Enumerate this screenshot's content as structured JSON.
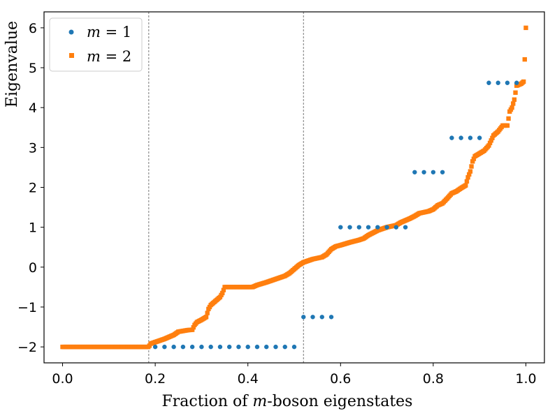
{
  "chart_data": {
    "type": "scatter",
    "title": "",
    "xlabel": "Fraction of m-boson eigenstates",
    "xlabel_prefix": "Fraction of ",
    "xlabel_var": "m",
    "xlabel_suffix": "-boson eigenstates",
    "ylabel": "Eigenvalue",
    "xlim": [
      -0.04,
      1.04
    ],
    "ylim": [
      -2.4,
      6.4
    ],
    "xticks": [
      0.0,
      0.2,
      0.4,
      0.6,
      0.8,
      1.0
    ],
    "xtick_labels": [
      "0.0",
      "0.2",
      "0.4",
      "0.6",
      "0.8",
      "1.0"
    ],
    "yticks": [
      -2,
      -1,
      0,
      1,
      2,
      3,
      4,
      5,
      6
    ],
    "ytick_labels": [
      "−2",
      "−1",
      "0",
      "1",
      "2",
      "3",
      "4",
      "5",
      "6"
    ],
    "grid": false,
    "legend_position": "upper-left",
    "vlines": [
      0.186,
      0.52
    ],
    "vline_color": "#777777",
    "series": [
      {
        "name": "m = 1",
        "label_var": "m",
        "label_rest": " = 1",
        "marker": "circle",
        "color": "#1f77b4",
        "points": [
          [
            0.2,
            -2.0
          ],
          [
            0.22,
            -2.0
          ],
          [
            0.24,
            -2.0
          ],
          [
            0.26,
            -2.0
          ],
          [
            0.28,
            -2.0
          ],
          [
            0.3,
            -2.0
          ],
          [
            0.32,
            -2.0
          ],
          [
            0.34,
            -2.0
          ],
          [
            0.36,
            -2.0
          ],
          [
            0.38,
            -2.0
          ],
          [
            0.4,
            -2.0
          ],
          [
            0.42,
            -2.0
          ],
          [
            0.44,
            -2.0
          ],
          [
            0.46,
            -2.0
          ],
          [
            0.48,
            -2.0
          ],
          [
            0.5,
            -2.0
          ],
          [
            0.52,
            -1.25
          ],
          [
            0.54,
            -1.25
          ],
          [
            0.56,
            -1.25
          ],
          [
            0.58,
            -1.25
          ],
          [
            0.6,
            1.0
          ],
          [
            0.62,
            1.0
          ],
          [
            0.64,
            1.0
          ],
          [
            0.66,
            1.0
          ],
          [
            0.68,
            1.0
          ],
          [
            0.7,
            1.0
          ],
          [
            0.72,
            1.0
          ],
          [
            0.74,
            1.0
          ],
          [
            0.76,
            2.38
          ],
          [
            0.78,
            2.38
          ],
          [
            0.8,
            2.38
          ],
          [
            0.82,
            2.38
          ],
          [
            0.84,
            3.24
          ],
          [
            0.86,
            3.24
          ],
          [
            0.88,
            3.24
          ],
          [
            0.9,
            3.24
          ],
          [
            0.92,
            4.62
          ],
          [
            0.94,
            4.62
          ],
          [
            0.96,
            4.62
          ],
          [
            0.98,
            4.62
          ]
        ]
      },
      {
        "name": "m = 2",
        "label_var": "m",
        "label_rest": " = 2",
        "marker": "square",
        "color": "#ff7f0e",
        "x_range": [
          0.0,
          1.0
        ],
        "points": [
          [
            0.0,
            -2.0
          ],
          [
            0.05,
            -2.0
          ],
          [
            0.1,
            -2.0
          ],
          [
            0.15,
            -2.0
          ],
          [
            0.186,
            -2.0
          ],
          [
            0.19,
            -1.92
          ],
          [
            0.2,
            -1.88
          ],
          [
            0.22,
            -1.8
          ],
          [
            0.24,
            -1.7
          ],
          [
            0.25,
            -1.62
          ],
          [
            0.27,
            -1.58
          ],
          [
            0.28,
            -1.57
          ],
          [
            0.285,
            -1.45
          ],
          [
            0.29,
            -1.38
          ],
          [
            0.3,
            -1.32
          ],
          [
            0.31,
            -1.25
          ],
          [
            0.315,
            -1.05
          ],
          [
            0.32,
            -0.95
          ],
          [
            0.33,
            -0.85
          ],
          [
            0.34,
            -0.75
          ],
          [
            0.345,
            -0.65
          ],
          [
            0.35,
            -0.5
          ],
          [
            0.37,
            -0.5
          ],
          [
            0.39,
            -0.5
          ],
          [
            0.41,
            -0.5
          ],
          [
            0.42,
            -0.45
          ],
          [
            0.44,
            -0.38
          ],
          [
            0.46,
            -0.3
          ],
          [
            0.48,
            -0.22
          ],
          [
            0.49,
            -0.15
          ],
          [
            0.5,
            -0.05
          ],
          [
            0.51,
            0.05
          ],
          [
            0.52,
            0.12
          ],
          [
            0.54,
            0.2
          ],
          [
            0.56,
            0.25
          ],
          [
            0.57,
            0.32
          ],
          [
            0.58,
            0.45
          ],
          [
            0.59,
            0.52
          ],
          [
            0.6,
            0.55
          ],
          [
            0.62,
            0.62
          ],
          [
            0.64,
            0.68
          ],
          [
            0.65,
            0.72
          ],
          [
            0.66,
            0.8
          ],
          [
            0.68,
            0.92
          ],
          [
            0.7,
            1.0
          ],
          [
            0.72,
            1.05
          ],
          [
            0.73,
            1.12
          ],
          [
            0.75,
            1.22
          ],
          [
            0.76,
            1.28
          ],
          [
            0.77,
            1.35
          ],
          [
            0.79,
            1.4
          ],
          [
            0.8,
            1.45
          ],
          [
            0.81,
            1.55
          ],
          [
            0.82,
            1.6
          ],
          [
            0.83,
            1.72
          ],
          [
            0.84,
            1.85
          ],
          [
            0.85,
            1.9
          ],
          [
            0.86,
            1.98
          ],
          [
            0.87,
            2.05
          ],
          [
            0.875,
            2.25
          ],
          [
            0.88,
            2.4
          ],
          [
            0.885,
            2.65
          ],
          [
            0.89,
            2.78
          ],
          [
            0.9,
            2.85
          ],
          [
            0.91,
            2.92
          ],
          [
            0.92,
            3.05
          ],
          [
            0.93,
            3.3
          ],
          [
            0.94,
            3.4
          ],
          [
            0.95,
            3.55
          ],
          [
            0.96,
            3.55
          ],
          [
            0.965,
            3.9
          ],
          [
            0.97,
            4.0
          ],
          [
            0.975,
            4.2
          ],
          [
            0.98,
            4.55
          ],
          [
            0.99,
            4.6
          ],
          [
            0.995,
            4.65
          ],
          [
            0.998,
            5.32
          ],
          [
            1.0,
            6.0
          ]
        ]
      }
    ]
  }
}
